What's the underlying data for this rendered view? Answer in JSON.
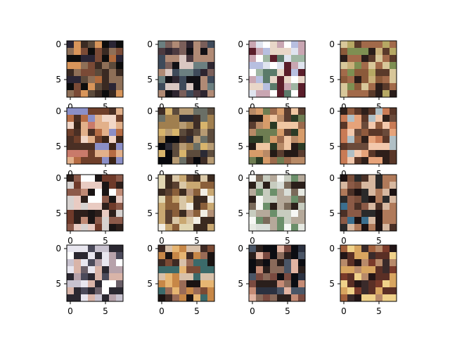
{
  "chart_data": {
    "type": "heatmap",
    "layout": {
      "rows": 4,
      "cols": 4
    },
    "image_shape": [
      8,
      8
    ],
    "xlim": [
      -0.5,
      7.5
    ],
    "ylim": [
      7.5,
      -0.5
    ],
    "xticks": [
      0,
      5
    ],
    "yticks": [
      0,
      5
    ],
    "x_tick_labels": [
      "0",
      "5"
    ],
    "y_tick_labels": [
      "0",
      "5"
    ],
    "grid": false,
    "panels": [
      {
        "palette": [
          "#0d0d0d",
          "#3a2a22",
          "#7a4a36",
          "#b06a3c",
          "#d8955a",
          "#2a2535",
          "#5c4a3b",
          "#8e6f57"
        ]
      },
      {
        "palette": [
          "#111015",
          "#2d2530",
          "#4c3a40",
          "#7a5f5a",
          "#b08a75",
          "#d9c7c2",
          "#6b7f80",
          "#3e4a5a"
        ]
      },
      {
        "palette": [
          "#ffffff",
          "#dfe4ef",
          "#b7bfe0",
          "#5b7a6a",
          "#9fb6a3",
          "#5a1d2a",
          "#c9a6b2",
          "#e8d6c8"
        ]
      },
      {
        "palette": [
          "#b6a864",
          "#c9b07a",
          "#7e8f52",
          "#5a3a2a",
          "#a26a4a",
          "#2a1d1a",
          "#d8c79a",
          "#8b5a3a"
        ]
      },
      {
        "palette": [
          "#3a2418",
          "#6f3f2a",
          "#b56b43",
          "#e2b08a",
          "#f1d6c7",
          "#c97a6a",
          "#8b8fc7",
          "#4a2f24"
        ]
      },
      {
        "palette": [
          "#07080d",
          "#2b2a34",
          "#5c4b3c",
          "#a07f4f",
          "#d7b46c",
          "#6a6f66",
          "#b79b73",
          "#3e2d26"
        ]
      },
      {
        "palette": [
          "#241a16",
          "#5a3d2f",
          "#9b6a4c",
          "#d79c6a",
          "#f0c7a3",
          "#6e7d52",
          "#2b3b25",
          "#b88a66"
        ]
      },
      {
        "palette": [
          "#5a3728",
          "#8f5a3d",
          "#c97b55",
          "#e6a37a",
          "#f2c8ac",
          "#b0bfc5",
          "#6a4a3a",
          "#2e1f1a"
        ]
      },
      {
        "palette": [
          "#2d1f1b",
          "#6f3a2a",
          "#bf8a75",
          "#e9cbc2",
          "#ffffff",
          "#d7d2d0",
          "#1a1515",
          "#8c5a4a"
        ]
      },
      {
        "palette": [
          "#e1d6b2",
          "#c9a872",
          "#8a5f3a",
          "#5a4030",
          "#f2eee4",
          "#b39076",
          "#3b2a20",
          "#d9c7a6"
        ]
      },
      {
        "palette": [
          "#f7f8f5",
          "#e6e9e2",
          "#c7ccbf",
          "#2b1f1a",
          "#7a6a5a",
          "#b5a99a",
          "#6b8f6a",
          "#d9ded8"
        ]
      },
      {
        "palette": [
          "#3c6f8e",
          "#1c1212",
          "#4a3026",
          "#7a4e3a",
          "#b07a5a",
          "#d7b8a0",
          "#2b2a2a",
          "#8b5a46"
        ]
      },
      {
        "palette": [
          "#ffffff",
          "#e8e6ef",
          "#c8c2cf",
          "#2a2730",
          "#6a5f68",
          "#b7a2aa",
          "#d9b4a8",
          "#4b4a5a"
        ]
      },
      {
        "palette": [
          "#1a1312",
          "#3e2a24",
          "#7b4a34",
          "#c78747",
          "#e6b572",
          "#3b6a6a",
          "#9a6b56",
          "#d7c0a9"
        ]
      },
      {
        "palette": [
          "#0c0d12",
          "#2b3140",
          "#4a5566",
          "#7a4a40",
          "#c58b75",
          "#e2b4a2",
          "#2a1f1c",
          "#8a6a5a"
        ]
      },
      {
        "palette": [
          "#221516",
          "#5a2f25",
          "#a2603c",
          "#d8a560",
          "#f0d28a",
          "#3a2a2a",
          "#7a3a2a",
          "#b88a6a"
        ]
      }
    ]
  }
}
